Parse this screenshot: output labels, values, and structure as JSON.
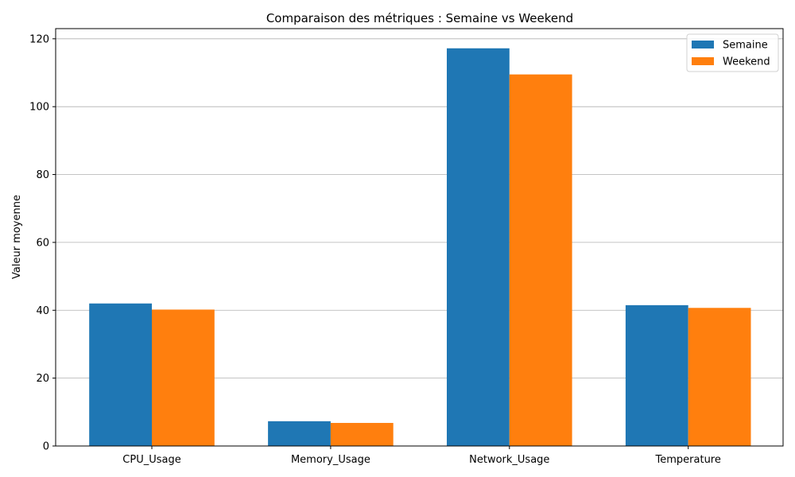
{
  "chart_data": {
    "type": "bar",
    "title": "Comparaison des métriques : Semaine vs Weekend",
    "xlabel": "",
    "ylabel": "Valeur moyenne",
    "categories": [
      "CPU_Usage",
      "Memory_Usage",
      "Network_Usage",
      "Temperature"
    ],
    "series": [
      {
        "name": "Semaine",
        "color": "#1f77b4",
        "values": [
          42.0,
          7.3,
          117.2,
          41.5
        ]
      },
      {
        "name": "Weekend",
        "color": "#ff7f0e",
        "values": [
          40.2,
          6.8,
          109.5,
          40.7
        ]
      }
    ],
    "ylim": [
      0,
      123
    ],
    "yticks": [
      0,
      20,
      40,
      60,
      80,
      100,
      120
    ],
    "grid": "horizontal",
    "legend_position": "top-right"
  }
}
